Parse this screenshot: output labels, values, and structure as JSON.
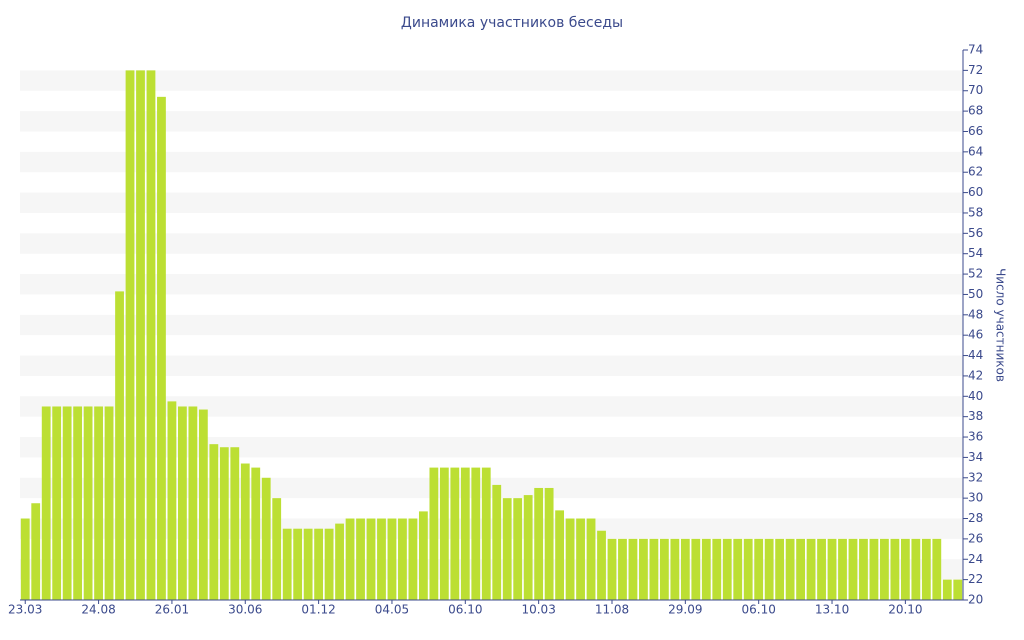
{
  "chart_data": {
    "type": "bar",
    "title": "Динамика участников беседы",
    "y_label": "Число участников",
    "categories": [
      "23.03",
      null,
      null,
      null,
      null,
      null,
      null,
      "24.08",
      null,
      null,
      null,
      null,
      null,
      null,
      "26.01",
      null,
      null,
      null,
      null,
      null,
      null,
      "30.06",
      null,
      null,
      null,
      null,
      null,
      null,
      "01.12",
      null,
      null,
      null,
      null,
      null,
      null,
      "04.05",
      null,
      null,
      null,
      null,
      null,
      null,
      "06.10",
      null,
      null,
      null,
      null,
      null,
      null,
      "10.03",
      null,
      null,
      null,
      null,
      null,
      null,
      "11.08",
      null,
      null,
      null,
      null,
      null,
      null,
      "29.09",
      null,
      null,
      null,
      null,
      null,
      null,
      "06.10",
      null,
      null,
      null,
      null,
      null,
      null,
      "13.10",
      null,
      null,
      null,
      null,
      null,
      null,
      "20.10",
      null,
      null,
      null,
      null,
      null
    ],
    "values": [
      28,
      29.5,
      39,
      39,
      39,
      39,
      39,
      39,
      39,
      50.3,
      72,
      72,
      72,
      69.4,
      39.5,
      39,
      39,
      38.7,
      35.3,
      35,
      35,
      33.4,
      33,
      32,
      30,
      27,
      27,
      27,
      27,
      27,
      27.5,
      28,
      28,
      28,
      28,
      28,
      28,
      28,
      28.7,
      33,
      33,
      33,
      33,
      33,
      33,
      31.3,
      30,
      30,
      30.3,
      31,
      31,
      28.8,
      28,
      28,
      28,
      26.8,
      26,
      26,
      26,
      26,
      26,
      26,
      26,
      26,
      26,
      26,
      26,
      26,
      26,
      26,
      26,
      26,
      26,
      26,
      26,
      26,
      26,
      26,
      26,
      26,
      26,
      26,
      26,
      26,
      26,
      26,
      26,
      26,
      22,
      22
    ],
    "color": "#bcdf33",
    "ylim": [
      20,
      74
    ],
    "yticks": [
      20,
      22,
      24,
      26,
      28,
      30,
      32,
      34,
      36,
      38,
      40,
      42,
      44,
      46,
      48,
      50,
      52,
      54,
      56,
      58,
      60,
      62,
      64,
      66,
      68,
      70,
      72,
      74
    ],
    "grid": true,
    "y_axis_side": "right"
  }
}
